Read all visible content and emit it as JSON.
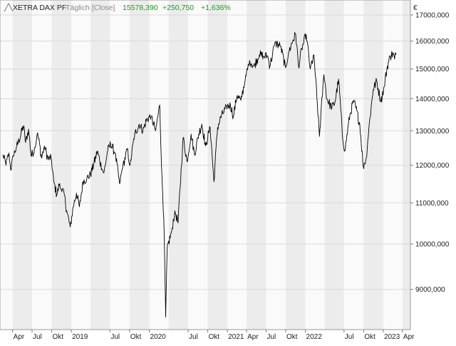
{
  "legend": {
    "name": "XETRA DAX PF",
    "interval": "Täglich [Close]",
    "value": "15578,390",
    "change": "+250,750",
    "change_pct": "+1,636%"
  },
  "currency": "€",
  "colors": {
    "line": "#000000",
    "positive": "#1a9a1a",
    "band": "#ececec",
    "grid": "#d9d9d9",
    "text": "#222222",
    "legend_gray": "#888888"
  },
  "chart_data": {
    "type": "line",
    "series": [
      {
        "name": "XETRA DAX PF",
        "points": [
          [
            "2018-02-15",
            12300
          ],
          [
            "2018-03-01",
            12000
          ],
          [
            "2018-03-15",
            12350
          ],
          [
            "2018-03-23",
            11870
          ],
          [
            "2018-04-05",
            12250
          ],
          [
            "2018-04-20",
            12550
          ],
          [
            "2018-05-01",
            12700
          ],
          [
            "2018-05-15",
            13000
          ],
          [
            "2018-05-22",
            13150
          ],
          [
            "2018-06-01",
            12650
          ],
          [
            "2018-06-15",
            13050
          ],
          [
            "2018-06-27",
            12250
          ],
          [
            "2018-07-15",
            12500
          ],
          [
            "2018-07-25",
            12900
          ],
          [
            "2018-08-01",
            12750
          ],
          [
            "2018-08-15",
            12200
          ],
          [
            "2018-08-28",
            12550
          ],
          [
            "2018-09-15",
            12150
          ],
          [
            "2018-09-28",
            12250
          ],
          [
            "2018-10-11",
            11550
          ],
          [
            "2018-10-25",
            11200
          ],
          [
            "2018-11-05",
            11450
          ],
          [
            "2018-11-15",
            11350
          ],
          [
            "2018-11-28",
            11250
          ],
          [
            "2018-12-10",
            10800
          ],
          [
            "2018-12-27",
            10400
          ],
          [
            "2019-01-10",
            10900
          ],
          [
            "2019-01-25",
            11250
          ],
          [
            "2019-02-08",
            10900
          ],
          [
            "2019-02-25",
            11550
          ],
          [
            "2019-03-15",
            11650
          ],
          [
            "2019-04-01",
            11750
          ],
          [
            "2019-04-15",
            12000
          ],
          [
            "2019-05-03",
            12400
          ],
          [
            "2019-05-24",
            11900
          ],
          [
            "2019-06-03",
            11800
          ],
          [
            "2019-06-20",
            12400
          ],
          [
            "2019-07-04",
            12600
          ],
          [
            "2019-07-25",
            12350
          ],
          [
            "2019-08-15",
            11500
          ],
          [
            "2019-08-30",
            11950
          ],
          [
            "2019-09-20",
            12450
          ],
          [
            "2019-10-03",
            12000
          ],
          [
            "2019-10-25",
            12900
          ],
          [
            "2019-11-15",
            13200
          ],
          [
            "2019-12-02",
            13000
          ],
          [
            "2019-12-20",
            13350
          ],
          [
            "2020-01-10",
            13450
          ],
          [
            "2020-01-31",
            13000
          ],
          [
            "2020-02-19",
            13800
          ],
          [
            "2020-02-28",
            11900
          ],
          [
            "2020-03-09",
            10600
          ],
          [
            "2020-03-18",
            8440
          ],
          [
            "2020-03-25",
            9900
          ],
          [
            "2020-04-15",
            10300
          ],
          [
            "2020-04-30",
            10800
          ],
          [
            "2020-05-15",
            10500
          ],
          [
            "2020-06-08",
            12800
          ],
          [
            "2020-06-26",
            12100
          ],
          [
            "2020-07-15",
            12900
          ],
          [
            "2020-07-31",
            12300
          ],
          [
            "2020-08-20",
            12900
          ],
          [
            "2020-09-03",
            13200
          ],
          [
            "2020-09-21",
            12550
          ],
          [
            "2020-10-12",
            13100
          ],
          [
            "2020-10-30",
            11550
          ],
          [
            "2020-11-16",
            13100
          ],
          [
            "2020-12-01",
            13400
          ],
          [
            "2020-12-28",
            13750
          ],
          [
            "2021-01-15",
            13800
          ],
          [
            "2021-01-29",
            13450
          ],
          [
            "2021-02-15",
            14100
          ],
          [
            "2021-03-05",
            13950
          ],
          [
            "2021-03-25",
            14600
          ],
          [
            "2021-04-15",
            15300
          ],
          [
            "2021-05-05",
            15100
          ],
          [
            "2021-05-31",
            15500
          ],
          [
            "2021-06-18",
            15450
          ],
          [
            "2021-07-08",
            15450
          ],
          [
            "2021-07-19",
            15100
          ],
          [
            "2021-08-13",
            15950
          ],
          [
            "2021-09-07",
            15800
          ],
          [
            "2021-09-30",
            15050
          ],
          [
            "2021-10-15",
            15600
          ],
          [
            "2021-11-05",
            16050
          ],
          [
            "2021-11-17",
            16250
          ],
          [
            "2021-11-30",
            15100
          ],
          [
            "2021-12-15",
            15700
          ],
          [
            "2022-01-05",
            16250
          ],
          [
            "2022-01-24",
            15000
          ],
          [
            "2022-02-10",
            15500
          ],
          [
            "2022-02-24",
            14050
          ],
          [
            "2022-03-08",
            12830
          ],
          [
            "2022-03-29",
            14800
          ],
          [
            "2022-04-12",
            14000
          ],
          [
            "2022-05-05",
            13700
          ],
          [
            "2022-05-20",
            13900
          ],
          [
            "2022-06-06",
            14650
          ],
          [
            "2022-06-23",
            12900
          ],
          [
            "2022-07-05",
            12400
          ],
          [
            "2022-07-29",
            13500
          ],
          [
            "2022-08-16",
            13950
          ],
          [
            "2022-09-13",
            13200
          ],
          [
            "2022-09-29",
            11970
          ],
          [
            "2022-10-13",
            12200
          ],
          [
            "2022-10-28",
            13250
          ],
          [
            "2022-11-15",
            14300
          ],
          [
            "2022-12-01",
            14600
          ],
          [
            "2022-12-20",
            13900
          ],
          [
            "2023-01-05",
            14400
          ],
          [
            "2023-01-20",
            15100
          ],
          [
            "2023-02-03",
            15450
          ],
          [
            "2023-02-14",
            15550
          ],
          [
            "2023-02-23",
            15350
          ],
          [
            "2023-03-02",
            15578
          ]
        ]
      }
    ],
    "x_range": [
      "2018-02-01",
      "2023-05-08"
    ],
    "y_range": [
      8200,
      17600
    ],
    "y_scale": "log",
    "y_ticks": [
      {
        "value": 9000,
        "label": "9000,000"
      },
      {
        "value": 10000,
        "label": "10000,000"
      },
      {
        "value": 11000,
        "label": "11000,000"
      },
      {
        "value": 12000,
        "label": "12000,000"
      },
      {
        "value": 13000,
        "label": "13000,000"
      },
      {
        "value": 14000,
        "label": "14000,000"
      },
      {
        "value": 15000,
        "label": "15000,000"
      },
      {
        "value": 16000,
        "label": "16000,000"
      },
      {
        "value": 17000,
        "label": "17000,000"
      }
    ],
    "x_ticks": [
      {
        "date": "2018-04-01",
        "label": "Apr"
      },
      {
        "date": "2018-07-01",
        "label": "Jul"
      },
      {
        "date": "2018-10-01",
        "label": "Okt"
      },
      {
        "date": "2019-01-01",
        "label": "2019"
      },
      {
        "date": "2019-07-01",
        "label": "Jul"
      },
      {
        "date": "2019-10-01",
        "label": "Okt"
      },
      {
        "date": "2020-01-01",
        "label": "2020"
      },
      {
        "date": "2020-07-01",
        "label": "Jul"
      },
      {
        "date": "2020-10-01",
        "label": "Okt"
      },
      {
        "date": "2021-01-01",
        "label": "2021"
      },
      {
        "date": "2021-04-01",
        "label": "Apr"
      },
      {
        "date": "2021-07-01",
        "label": "Jul"
      },
      {
        "date": "2021-10-01",
        "label": "Okt"
      },
      {
        "date": "2022-01-01",
        "label": "2022"
      },
      {
        "date": "2022-07-01",
        "label": "Jul"
      },
      {
        "date": "2022-10-01",
        "label": "Okt"
      },
      {
        "date": "2023-01-01",
        "label": "2023"
      },
      {
        "date": "2023-04-01",
        "label": "Apr"
      }
    ],
    "grid": true,
    "alternating_bands": "quarterly"
  }
}
